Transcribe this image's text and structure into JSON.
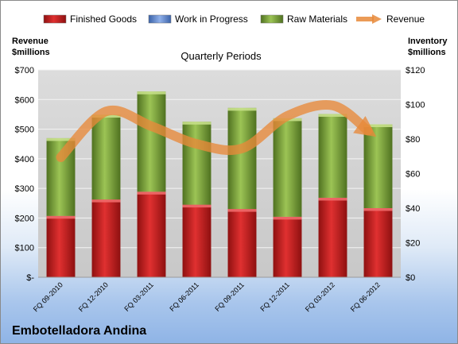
{
  "company": "Embotelladora Andina",
  "chart_data": {
    "type": "bar",
    "stacked": true,
    "title": "Quarterly Periods",
    "xlabel": "",
    "ylabel_left": "Revenue\n$millions",
    "ylabel_right": "Inventory\n$millions",
    "categories": [
      "FQ 09-2010",
      "FQ 12-2010",
      "FQ 03-2011",
      "FQ 06-2011",
      "FQ 09-2011",
      "FQ 12-2011",
      "FQ 03-2012",
      "FQ 06-2012"
    ],
    "ylim_left": [
      0,
      700
    ],
    "ylim_right": [
      0,
      120
    ],
    "left_ticks": [
      "$-",
      "$100",
      "$200",
      "$300",
      "$400",
      "$500",
      "$600",
      "$700"
    ],
    "right_ticks": [
      "$0",
      "$20",
      "$40",
      "$60",
      "$80",
      "$100",
      "$120"
    ],
    "series": [
      {
        "name": "Finished Goods",
        "axis": "right",
        "color": "#cc2222",
        "values": [
          35.5,
          45,
          49.5,
          42,
          39.5,
          35,
          46,
          40
        ]
      },
      {
        "name": "Work in Progress",
        "axis": "right",
        "color": "#5b87d6",
        "values": [
          0,
          0,
          0,
          0,
          0,
          0,
          0,
          0
        ]
      },
      {
        "name": "Raw Materials",
        "axis": "right",
        "color": "#7da23a",
        "values": [
          45,
          49,
          58,
          48,
          58.5,
          57,
          48.5,
          48.5
        ]
      },
      {
        "name": "Revenue",
        "axis": "left",
        "color": "#e8893a",
        "type": "line",
        "values": [
          405,
          560,
          510,
          450,
          435,
          545,
          580,
          470
        ]
      }
    ],
    "grid": true,
    "legend": "top"
  }
}
